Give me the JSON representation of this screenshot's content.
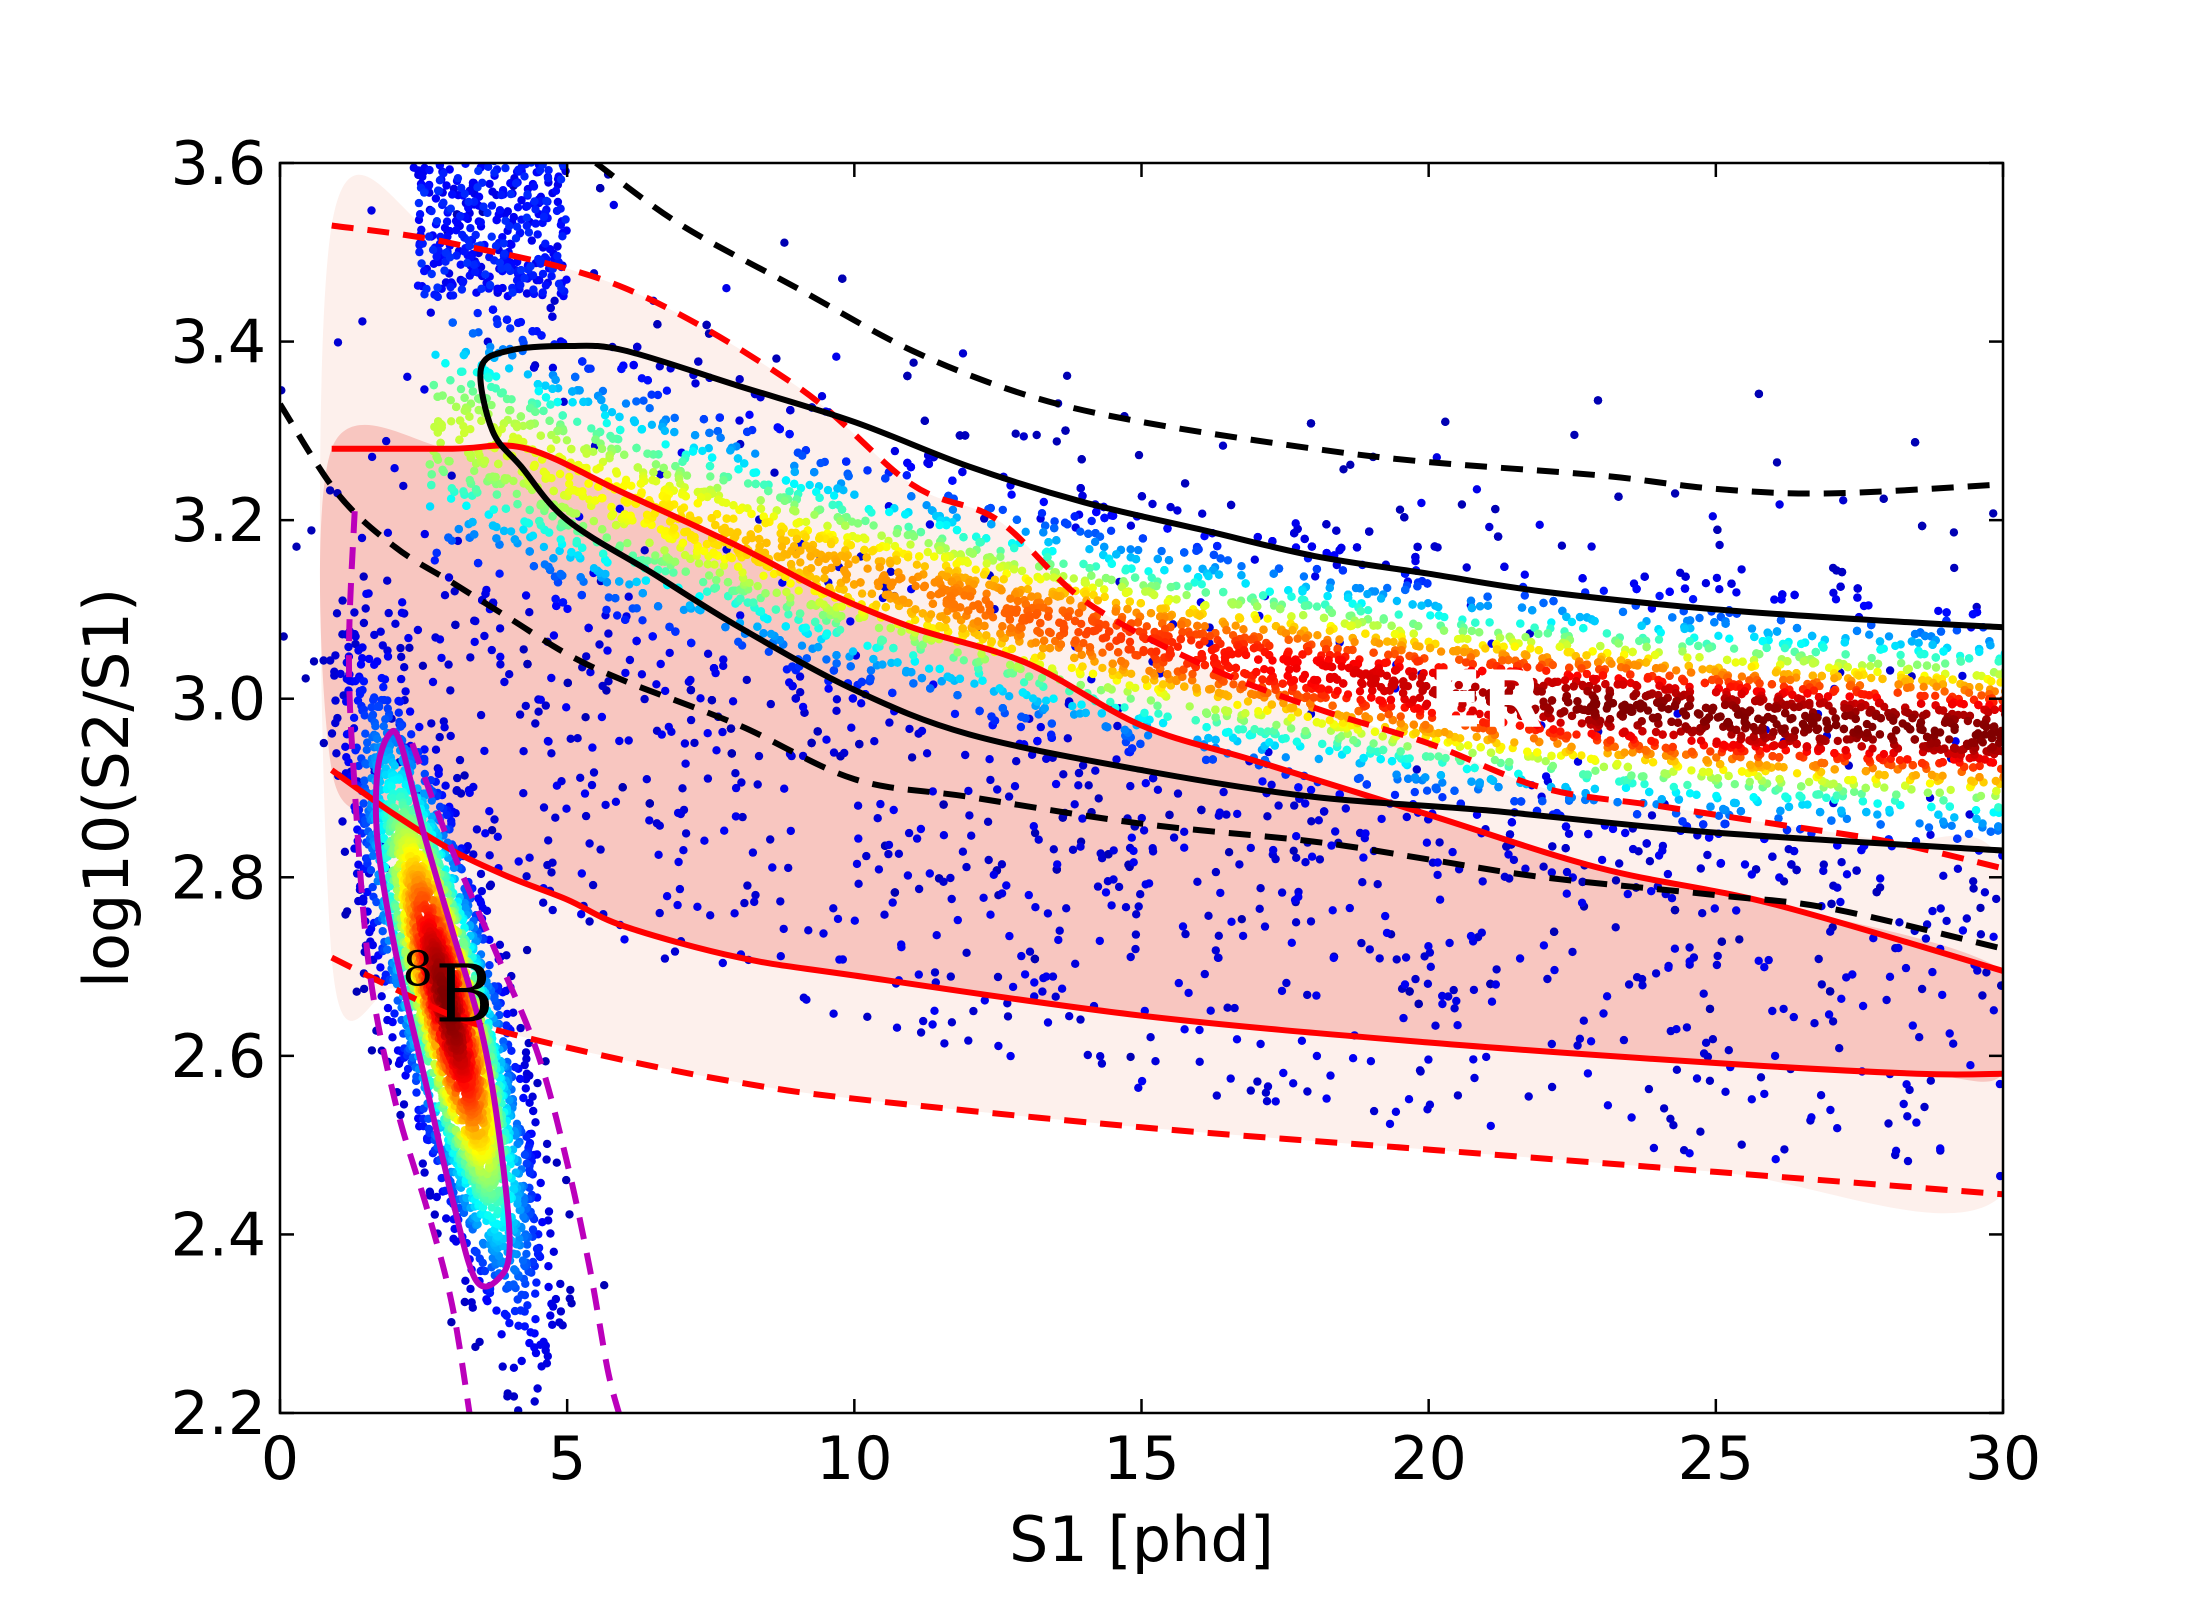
{
  "chart_data": {
    "type": "scatter",
    "title": "",
    "xlabel": "S1 [phd]",
    "ylabel": "log10(S2/S1)",
    "xlim": [
      0,
      30
    ],
    "ylim": [
      2.2,
      3.6
    ],
    "xticks": [
      0,
      5,
      10,
      15,
      20,
      25,
      30
    ],
    "xtick_labels": [
      "0",
      "5",
      "10",
      "15",
      "20",
      "25",
      "30"
    ],
    "yticks": [
      2.2,
      2.4,
      2.6,
      2.8,
      3.0,
      3.2,
      3.4,
      3.6
    ],
    "ytick_labels": [
      "2.2",
      "2.4",
      "2.6",
      "2.8",
      "3.0",
      "3.2",
      "3.4",
      "3.6"
    ],
    "grid": false,
    "colormap": "jet (point density)",
    "annotations": {
      "er_label": "ER",
      "b8_label": "B",
      "b8_superscript": "8",
      "er_position": [
        21,
        3.0
      ],
      "b8_position": [
        2.7,
        2.67
      ]
    },
    "series": [
      {
        "kind": "band-fill",
        "color": "#fdf0ec",
        "lower": [
          [
            0.9,
            2.71
          ],
          [
            2,
            2.675
          ],
          [
            3,
            2.645
          ],
          [
            4,
            2.625
          ],
          [
            6,
            2.595
          ],
          [
            8,
            2.57
          ],
          [
            10,
            2.552
          ],
          [
            15,
            2.52
          ],
          [
            20,
            2.495
          ],
          [
            25,
            2.47
          ],
          [
            30,
            2.445
          ]
        ],
        "upper": [
          [
            0.9,
            3.53
          ],
          [
            3,
            3.51
          ],
          [
            6,
            3.46
          ],
          [
            9,
            3.35
          ],
          [
            11,
            3.24
          ],
          [
            12.5,
            3.2
          ],
          [
            14,
            3.11
          ],
          [
            16,
            3.04
          ],
          [
            18,
            2.99
          ],
          [
            20,
            2.95
          ],
          [
            22,
            2.9
          ],
          [
            24,
            2.88
          ],
          [
            26,
            2.86
          ],
          [
            28,
            2.84
          ],
          [
            30,
            2.81
          ]
        ]
      },
      {
        "kind": "band-fill",
        "color": "#f8c6c0",
        "lower": [
          [
            0.9,
            2.92
          ],
          [
            2,
            2.87
          ],
          [
            3,
            2.83
          ],
          [
            4,
            2.8
          ],
          [
            5,
            2.775
          ],
          [
            6,
            2.745
          ],
          [
            8,
            2.71
          ],
          [
            10,
            2.69
          ],
          [
            15,
            2.645
          ],
          [
            20,
            2.615
          ],
          [
            25,
            2.592
          ],
          [
            28.5,
            2.58
          ],
          [
            30,
            2.58
          ]
        ],
        "upper": [
          [
            0.9,
            3.28
          ],
          [
            3,
            3.28
          ],
          [
            4.3,
            3.28
          ],
          [
            6,
            3.23
          ],
          [
            8,
            3.17
          ],
          [
            9.5,
            3.12
          ],
          [
            11,
            3.08
          ],
          [
            13,
            3.04
          ],
          [
            15,
            2.97
          ],
          [
            17,
            2.93
          ],
          [
            20,
            2.87
          ],
          [
            23,
            2.81
          ],
          [
            26,
            2.77
          ],
          [
            30,
            2.695
          ]
        ]
      },
      {
        "kind": "line",
        "name": "",
        "style": "solid",
        "color": "#ff0000",
        "points": [
          [
            0.9,
            3.28
          ],
          [
            3,
            3.28
          ],
          [
            4.3,
            3.28
          ],
          [
            6,
            3.23
          ],
          [
            8,
            3.17
          ],
          [
            9.5,
            3.12
          ],
          [
            11,
            3.08
          ],
          [
            13,
            3.04
          ],
          [
            15,
            2.97
          ],
          [
            17,
            2.93
          ],
          [
            20,
            2.87
          ],
          [
            23,
            2.81
          ],
          [
            26,
            2.77
          ],
          [
            30,
            2.695
          ]
        ]
      },
      {
        "kind": "line",
        "name": "",
        "style": "solid",
        "color": "#ff0000",
        "points": [
          [
            0.9,
            2.92
          ],
          [
            2,
            2.87
          ],
          [
            3,
            2.83
          ],
          [
            4,
            2.8
          ],
          [
            5,
            2.775
          ],
          [
            6,
            2.745
          ],
          [
            8,
            2.71
          ],
          [
            10,
            2.69
          ],
          [
            15,
            2.645
          ],
          [
            20,
            2.615
          ],
          [
            25,
            2.592
          ],
          [
            28.5,
            2.58
          ],
          [
            30,
            2.58
          ]
        ]
      },
      {
        "kind": "line",
        "name": "",
        "style": "dashed",
        "color": "#ff0000",
        "points": [
          [
            0.9,
            3.53
          ],
          [
            3,
            3.51
          ],
          [
            6,
            3.46
          ],
          [
            9,
            3.35
          ],
          [
            11,
            3.24
          ],
          [
            12.5,
            3.2
          ],
          [
            14,
            3.11
          ],
          [
            16,
            3.04
          ],
          [
            18,
            2.99
          ],
          [
            20,
            2.95
          ],
          [
            22,
            2.9
          ],
          [
            24,
            2.88
          ],
          [
            26,
            2.86
          ],
          [
            28,
            2.84
          ],
          [
            30,
            2.81
          ]
        ]
      },
      {
        "kind": "line",
        "name": "",
        "style": "dashed",
        "color": "#ff0000",
        "points": [
          [
            0.9,
            2.71
          ],
          [
            2,
            2.675
          ],
          [
            3,
            2.645
          ],
          [
            4,
            2.625
          ],
          [
            6,
            2.595
          ],
          [
            8,
            2.57
          ],
          [
            10,
            2.552
          ],
          [
            15,
            2.52
          ],
          [
            20,
            2.495
          ],
          [
            25,
            2.47
          ],
          [
            30,
            2.445
          ]
        ]
      },
      {
        "kind": "line",
        "name": "",
        "style": "dashed",
        "color": "#000000",
        "points": [
          [
            5.5,
            3.6
          ],
          [
            7,
            3.53
          ],
          [
            9,
            3.46
          ],
          [
            11,
            3.39
          ],
          [
            13,
            3.34
          ],
          [
            15,
            3.31
          ],
          [
            18,
            3.28
          ],
          [
            20,
            3.265
          ],
          [
            23,
            3.25
          ],
          [
            25,
            3.235
          ],
          [
            27,
            3.23
          ],
          [
            30,
            3.24
          ]
        ]
      },
      {
        "kind": "line",
        "name": "",
        "style": "dashed",
        "color": "#000000",
        "points": [
          [
            0,
            3.33
          ],
          [
            1,
            3.23
          ],
          [
            2,
            3.17
          ],
          [
            3,
            3.13
          ],
          [
            4,
            3.09
          ],
          [
            5,
            3.05
          ],
          [
            6,
            3.02
          ],
          [
            8,
            2.97
          ],
          [
            10,
            2.91
          ],
          [
            12,
            2.89
          ],
          [
            15,
            2.86
          ],
          [
            18,
            2.84
          ],
          [
            20,
            2.82
          ],
          [
            22,
            2.8
          ],
          [
            25,
            2.78
          ],
          [
            27,
            2.765
          ],
          [
            30,
            2.72
          ]
        ]
      },
      {
        "kind": "contour",
        "name": "ER",
        "style": "solid",
        "color": "#000000",
        "closed": false,
        "points": [
          [
            30,
            3.08
          ],
          [
            28,
            3.087
          ],
          [
            25,
            3.1
          ],
          [
            22,
            3.12
          ],
          [
            20,
            3.14
          ],
          [
            18,
            3.16
          ],
          [
            16,
            3.19
          ],
          [
            14,
            3.22
          ],
          [
            12,
            3.26
          ],
          [
            10,
            3.31
          ],
          [
            8,
            3.35
          ],
          [
            6,
            3.39
          ],
          [
            5,
            3.395
          ],
          [
            4,
            3.39
          ],
          [
            3.5,
            3.37
          ],
          [
            3.7,
            3.3
          ],
          [
            4.2,
            3.26
          ],
          [
            5,
            3.2
          ],
          [
            6.5,
            3.14
          ],
          [
            8,
            3.08
          ],
          [
            10,
            3.01
          ],
          [
            12,
            2.96
          ],
          [
            15,
            2.92
          ],
          [
            18,
            2.89
          ],
          [
            21,
            2.875
          ],
          [
            25,
            2.85
          ],
          [
            30,
            2.83
          ]
        ]
      },
      {
        "kind": "contour",
        "name": "8B",
        "style": "solid",
        "color": "#bb00bb",
        "closed": true,
        "points": [
          [
            1.7,
            2.92
          ],
          [
            1.9,
            2.96
          ],
          [
            2.1,
            2.95
          ],
          [
            2.5,
            2.85
          ],
          [
            3,
            2.74
          ],
          [
            3.5,
            2.63
          ],
          [
            3.8,
            2.52
          ],
          [
            4.0,
            2.39
          ],
          [
            3.8,
            2.35
          ],
          [
            3.4,
            2.35
          ],
          [
            3.0,
            2.44
          ],
          [
            2.5,
            2.58
          ],
          [
            2.0,
            2.72
          ],
          [
            1.7,
            2.84
          ]
        ]
      },
      {
        "kind": "line",
        "name": "",
        "style": "dashed",
        "color": "#bb00bb",
        "points": [
          [
            1.3,
            3.21
          ],
          [
            1.2,
            3.05
          ],
          [
            1.3,
            2.9
          ],
          [
            1.55,
            2.7
          ],
          [
            2.0,
            2.55
          ],
          [
            2.6,
            2.42
          ],
          [
            3.0,
            2.32
          ],
          [
            3.3,
            2.2
          ]
        ]
      },
      {
        "kind": "line",
        "name": "",
        "style": "dashed",
        "color": "#bb00bb",
        "points": [
          [
            2.3,
            2.95
          ],
          [
            3,
            2.83
          ],
          [
            3.8,
            2.71
          ],
          [
            4.5,
            2.6
          ],
          [
            5.0,
            2.48
          ],
          [
            5.4,
            2.36
          ],
          [
            5.7,
            2.25
          ],
          [
            5.9,
            2.2
          ]
        ]
      }
    ],
    "scatter_populations": [
      {
        "name": "ER",
        "description_of_density": "band along ER mean; peaks near S1 20–30, log10 ~2.98",
        "mean_curve": [
          [
            3,
            3.3
          ],
          [
            4,
            3.28
          ],
          [
            5,
            3.25
          ],
          [
            7,
            3.2
          ],
          [
            10,
            3.14
          ],
          [
            13,
            3.09
          ],
          [
            16,
            3.05
          ],
          [
            20,
            3.01
          ],
          [
            25,
            2.98
          ],
          [
            30,
            2.96
          ]
        ],
        "sigma_curve": [
          [
            3,
            0.08
          ],
          [
            5,
            0.075
          ],
          [
            10,
            0.065
          ],
          [
            20,
            0.06
          ],
          [
            30,
            0.06
          ]
        ]
      },
      {
        "name": "8B",
        "center": [
          2.9,
          2.65
        ],
        "extent_y": [
          2.2,
          3.2
        ]
      }
    ]
  }
}
